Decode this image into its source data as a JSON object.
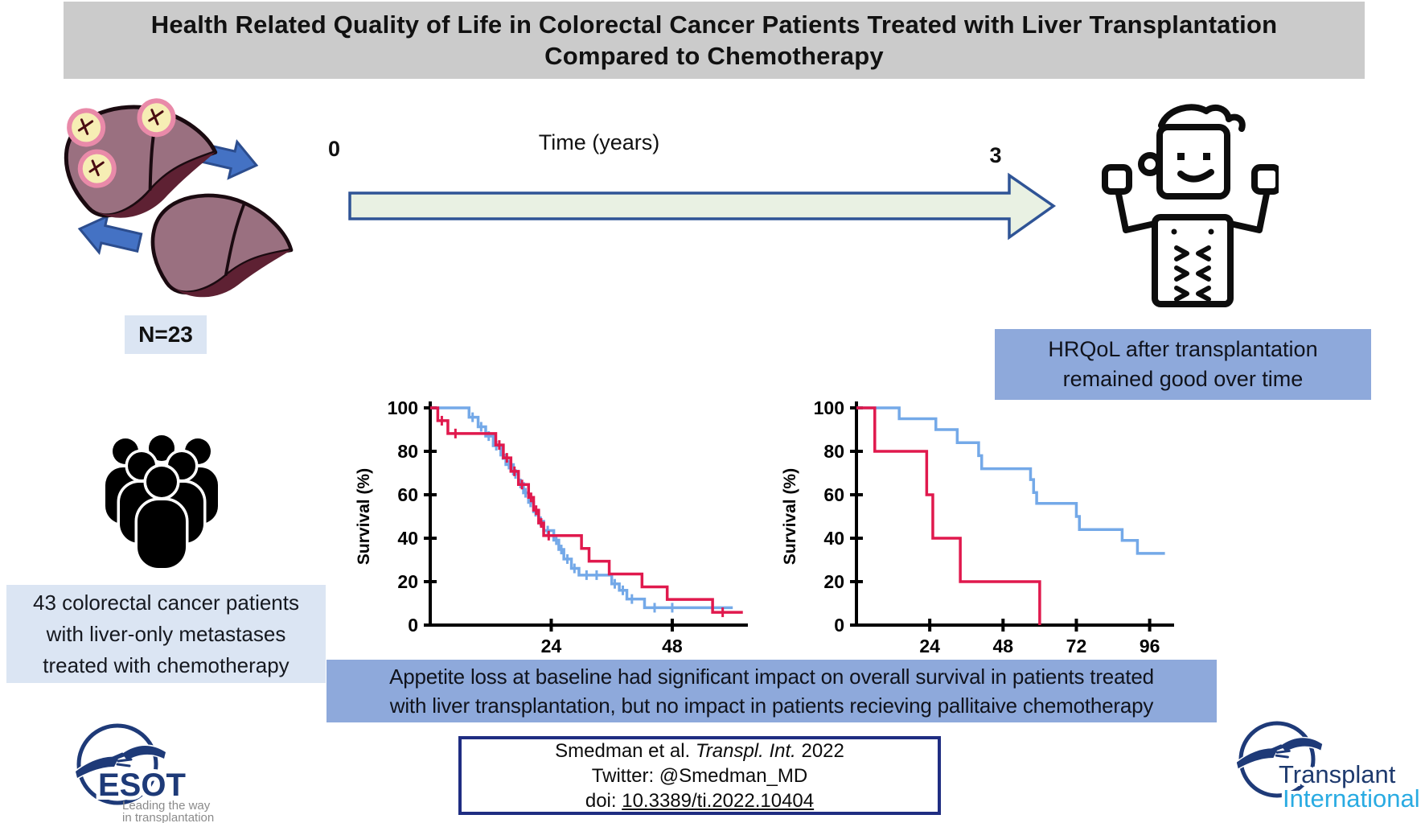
{
  "title": {
    "line1": "Health Related Quality of Life in Colorectal Cancer Patients Treated with Liver Transplantation",
    "line2": "Compared to Chemotherapy"
  },
  "colors": {
    "title_bar_bg": "#cbcbcb",
    "box_blue": "#8ea9db",
    "box_light_blue": "#dbe5f3",
    "arrow_green_fill": "#e9f1e3",
    "arrow_border_blue": "#2f5496",
    "block_arrow_blue": "#4472c4",
    "km_red": "#e0194d",
    "km_blue": "#74a9e8",
    "citation_border": "#1f2d82",
    "esot_navy": "#1e3a78",
    "ti_lightblue": "#29abe2",
    "tagline_gray": "#8b8b8b",
    "liver_body": "#9a7080",
    "liver_dark": "#5e2133",
    "tumor_fill": "#f6eeb4",
    "tumor_ring": "#e98aa9",
    "tumor_vein": "#4a0d12"
  },
  "transplant_group": {
    "n_label": "N=23"
  },
  "timeline": {
    "start": "0",
    "label": "Time (years)",
    "end": "3"
  },
  "outcome_box": {
    "line1": "HRQoL after transplantation",
    "line2": "remained good over time"
  },
  "chemo_group": {
    "line1": "43 colorectal cancer patients",
    "line2": "with liver-only metastases",
    "line3": "treated with chemotherapy"
  },
  "banner": {
    "line1": "Appetite loss at baseline had significant impact on overall survival in patients treated",
    "line2": "with liver transplantation, but no impact in patients recieving pallitaive chemotherapy"
  },
  "citation": {
    "line1_prefix": "Smedman et al. ",
    "line1_italic": "Transpl. Int.",
    "line1_suffix": " 2022",
    "line2": "Twitter: @Smedman_MD",
    "line3_prefix": "doi: ",
    "line3_doi": "10.3389/ti.2022.10404"
  },
  "logos": {
    "esot": {
      "name": "ESOT",
      "tagline_line1": "Leading the way",
      "tagline_line2": "in transplantation"
    },
    "ti": {
      "line1": "Transplant",
      "line2": "International"
    }
  },
  "icons": {
    "diseased-liver-icon": "liver with three tumor nodules",
    "healthy-liver-icon": "healthy transplanted liver",
    "exchange-arrow-icons": "blue block arrows between livers",
    "strong-patient-icon": "flexing healthy person line art",
    "patient-group-icon": "group of six person silhouettes",
    "esot-logo-icon": "two hands inside circle",
    "ti-logo-icon": "two hands inside circle"
  },
  "chart_data": [
    {
      "type": "line",
      "subtype": "kaplan-meier-step",
      "title": "",
      "xlabel": "",
      "ylabel": "Survival (%)",
      "xlim": [
        0,
        63
      ],
      "ylim": [
        0,
        100
      ],
      "xticks": [
        24,
        48
      ],
      "yticks": [
        0,
        20,
        40,
        60,
        80,
        100
      ],
      "grid": false,
      "legend": null,
      "x_units": "months",
      "series": [
        {
          "name": "blue-series",
          "color": "#74a9e8",
          "steps": [
            [
              0,
              100
            ],
            [
              7.7,
              95.7
            ],
            [
              9.5,
              91.3
            ],
            [
              11,
              87
            ],
            [
              12.5,
              82.6
            ],
            [
              14,
              78.3
            ],
            [
              15,
              73.9
            ],
            [
              16.5,
              69.6
            ],
            [
              17.5,
              65.2
            ],
            [
              18.5,
              60.9
            ],
            [
              19.5,
              56.5
            ],
            [
              20.5,
              52.2
            ],
            [
              21.5,
              47.8
            ],
            [
              22.5,
              43.5
            ],
            [
              24.5,
              39.1
            ],
            [
              25.5,
              34.8
            ],
            [
              26.5,
              30.4
            ],
            [
              28,
              26.1
            ],
            [
              29.5,
              23
            ],
            [
              36,
              19
            ],
            [
              37.5,
              16
            ],
            [
              39,
              12
            ],
            [
              42.5,
              8
            ]
          ],
          "end": 60,
          "censors": [
            [
              8.4,
              95.7
            ],
            [
              10.1,
              91.3
            ],
            [
              11.6,
              87
            ],
            [
              13.1,
              82.6
            ],
            [
              14.4,
              78.3
            ],
            [
              15.6,
              73.9
            ],
            [
              16.9,
              69.6
            ],
            [
              17.9,
              65.2
            ],
            [
              18.9,
              60.9
            ],
            [
              19.9,
              56.5
            ],
            [
              20.9,
              52.2
            ],
            [
              21.9,
              47.8
            ],
            [
              23.3,
              43.5
            ],
            [
              25,
              39.1
            ],
            [
              26,
              34.8
            ],
            [
              27.2,
              30.4
            ],
            [
              28.6,
              26.1
            ],
            [
              31,
              23
            ],
            [
              33,
              23
            ],
            [
              36.6,
              19
            ],
            [
              38.2,
              16
            ],
            [
              40,
              12
            ],
            [
              44.5,
              8
            ],
            [
              48,
              8
            ]
          ]
        },
        {
          "name": "red-series",
          "color": "#e0194d",
          "steps": [
            [
              0,
              100
            ],
            [
              1.5,
              94.1
            ],
            [
              3.5,
              88.2
            ],
            [
              13,
              82.9
            ],
            [
              14.5,
              77
            ],
            [
              16,
              70.8
            ],
            [
              17.5,
              64.7
            ],
            [
              19.5,
              58.8
            ],
            [
              20.5,
              52.9
            ],
            [
              21.5,
              47
            ],
            [
              22.5,
              41.2
            ],
            [
              30,
              35.3
            ],
            [
              31.5,
              29.4
            ],
            [
              35.5,
              23.5
            ],
            [
              42,
              17.6
            ],
            [
              47,
              11.8
            ],
            [
              56,
              5.9
            ]
          ],
          "end": 62,
          "censors": [
            [
              2.3,
              94.1
            ],
            [
              5,
              88.2
            ],
            [
              13.7,
              82.9
            ],
            [
              15.2,
              77
            ],
            [
              16.7,
              70.8
            ],
            [
              18.2,
              64.7
            ],
            [
              20,
              58.8
            ],
            [
              21,
              52.9
            ],
            [
              22,
              47
            ],
            [
              23.5,
              41.2
            ],
            [
              58,
              5.9
            ]
          ]
        }
      ]
    },
    {
      "type": "line",
      "subtype": "kaplan-meier-step",
      "title": "",
      "xlabel": "",
      "ylabel": "Survival (%)",
      "xlim": [
        0,
        104
      ],
      "ylim": [
        0,
        100
      ],
      "xticks": [
        24,
        48,
        72,
        96
      ],
      "yticks": [
        0,
        20,
        40,
        60,
        80,
        100
      ],
      "grid": false,
      "legend": null,
      "x_units": "months",
      "series": [
        {
          "name": "blue-series",
          "color": "#74a9e8",
          "steps": [
            [
              0,
              100
            ],
            [
              14,
              95
            ],
            [
              26,
              90
            ],
            [
              33,
              84
            ],
            [
              40,
              78
            ],
            [
              41,
              72
            ],
            [
              57,
              67
            ],
            [
              58,
              61
            ],
            [
              59,
              56
            ],
            [
              72,
              50
            ],
            [
              73,
              44
            ],
            [
              87,
              39
            ],
            [
              92,
              33
            ]
          ],
          "end": 101,
          "censors": []
        },
        {
          "name": "red-series",
          "color": "#e0194d",
          "steps": [
            [
              0,
              100
            ],
            [
              6,
              80
            ],
            [
              23,
              60
            ],
            [
              25,
              40
            ],
            [
              34,
              20
            ],
            [
              60,
              0
            ]
          ],
          "end": 60,
          "censors": []
        }
      ]
    }
  ]
}
